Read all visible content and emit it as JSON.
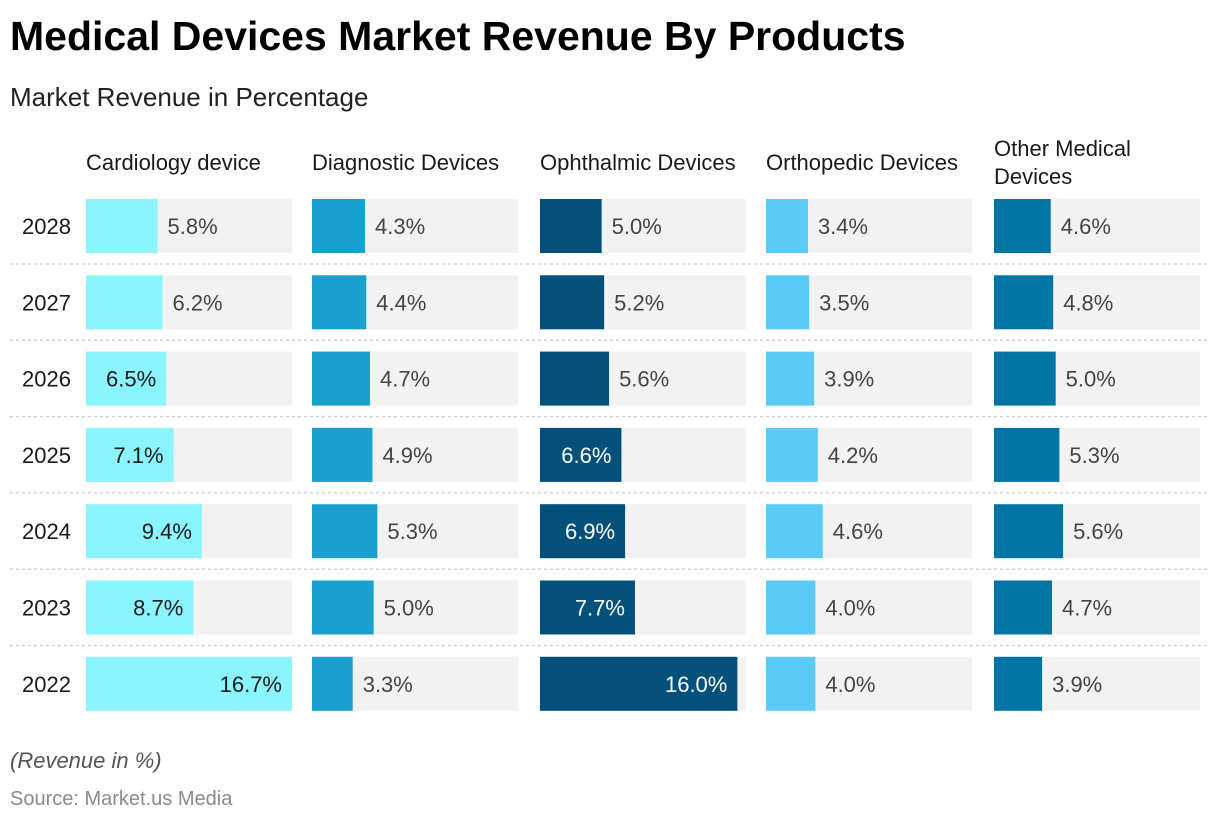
{
  "title": "Medical Devices Market Revenue By Products",
  "subtitle": "Market Revenue in Percentage",
  "note": "(Revenue in %)",
  "source": "Source: Market.us Media",
  "colors": {
    "track": "#f2f2f2",
    "divider": "#cccccc",
    "dark_text": "#1a1a1a",
    "light_text": "#ffffff"
  },
  "chart_data": {
    "type": "bar",
    "orientation": "horizontal",
    "layout": "small-multiples",
    "categories": [
      "2028",
      "2027",
      "2026",
      "2025",
      "2024",
      "2023",
      "2022"
    ],
    "xlim": [
      0,
      16.7
    ],
    "value_suffix": "%",
    "series": [
      {
        "name": "Cardiology device",
        "color": "#8af4ff",
        "text_color": "dark",
        "values": [
          5.8,
          6.2,
          6.5,
          7.1,
          9.4,
          8.7,
          16.7
        ]
      },
      {
        "name": "Diagnostic Devices",
        "color": "#1aa0cf",
        "text_color": "light",
        "values": [
          4.3,
          4.4,
          4.7,
          4.9,
          5.3,
          5.0,
          3.3
        ]
      },
      {
        "name": "Ophthalmic Devices",
        "color": "#03507a",
        "text_color": "light",
        "values": [
          5.0,
          5.2,
          5.6,
          6.6,
          6.9,
          7.7,
          16.0
        ]
      },
      {
        "name": "Orthopedic Devices",
        "color": "#5acaf6",
        "text_color": "dark",
        "values": [
          3.4,
          3.5,
          3.9,
          4.2,
          4.6,
          4.0,
          4.0
        ]
      },
      {
        "name": "Other Medical Devices",
        "color": "#0075a3",
        "text_color": "light",
        "values": [
          4.6,
          4.8,
          5.0,
          5.3,
          5.6,
          4.7,
          3.9
        ]
      }
    ]
  }
}
